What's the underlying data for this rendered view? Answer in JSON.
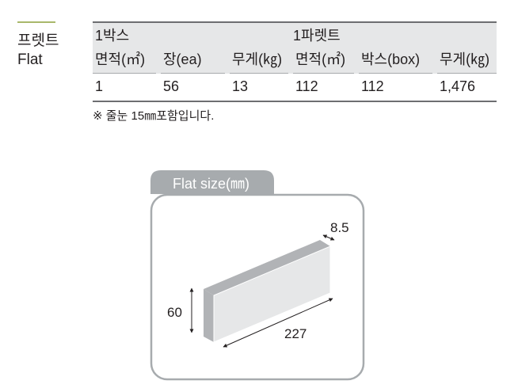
{
  "product": {
    "name_ko": "프렛트",
    "name_en": "Flat"
  },
  "table": {
    "group_headers": [
      "1박스",
      "1파렛트"
    ],
    "columns": [
      "면적(㎡)",
      "장(ea)",
      "무게(㎏)",
      "면적(㎡)",
      "박스(box)",
      "무게(㎏)"
    ],
    "row": [
      "1",
      "56",
      "13",
      "112",
      "112",
      "1,476"
    ]
  },
  "note": "※ 줄눈 15㎜포함입니다.",
  "diagram": {
    "title": "Flat size(㎜)",
    "thickness": "8.5",
    "height": "60",
    "length": "227"
  },
  "colors": {
    "accent": "#a9b86b",
    "tab": "#a7abae",
    "tile_face": "#e6e7e8",
    "tile_top": "#b1b3b6"
  }
}
